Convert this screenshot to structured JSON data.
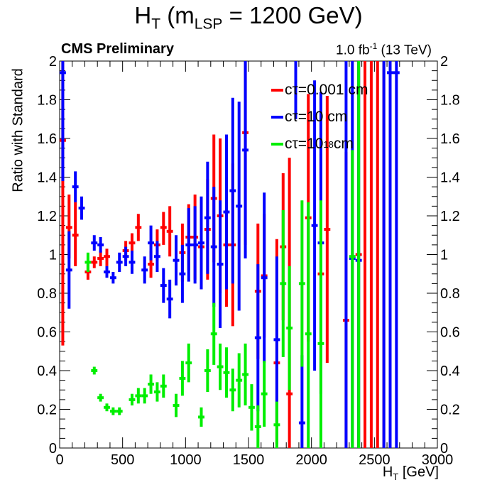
{
  "header": {
    "title_main": "H",
    "title_sub": "T",
    "title_mid": " (m",
    "title_sub2": "LSP",
    "title_end": " = 1200 GeV)",
    "cms_label": "CMS Preliminary",
    "lumi_value": "1.0 fb",
    "lumi_sup": "-1",
    "lumi_energy": " (13 TeV)",
    "xlabel_main": "H",
    "xlabel_sub": "T",
    "xlabel_unit": " [GeV]",
    "ylabel": "Ratio with Standard"
  },
  "legend": [
    {
      "prefix": "cτ=",
      "value": "0.001 cm",
      "sup": "",
      "suffix": "",
      "color": "#ff0000"
    },
    {
      "prefix": "cτ=",
      "value": "10 cm",
      "sup": "",
      "suffix": "",
      "color": "#0000ff"
    },
    {
      "prefix": "cτ=",
      "value": "10",
      "sup": "18",
      "suffix": " cm",
      "color": "#00ee00"
    }
  ],
  "chart_data": {
    "type": "scatter",
    "title": "H_T (m_LSP = 1200 GeV)",
    "xlabel": "H_T [GeV]",
    "ylabel": "Ratio with Standard",
    "xlim": [
      0,
      3000
    ],
    "ylim": [
      0,
      2
    ],
    "x_ticks": [
      "0",
      "500",
      "1000",
      "1500",
      "2000",
      "2500",
      "3000"
    ],
    "y_ticks": [
      "0",
      "0.2",
      "0.4",
      "0.6",
      "0.8",
      "1",
      "1.2",
      "1.4",
      "1.6",
      "1.8",
      "2"
    ],
    "bin_half_width": 25,
    "grid": false,
    "legend_position": "top-right",
    "series": [
      {
        "name": "cτ=0.001 cm",
        "color": "#ff0000",
        "x": [
          25,
          75,
          125,
          175,
          225,
          275,
          325,
          375,
          425,
          475,
          525,
          575,
          625,
          675,
          725,
          775,
          825,
          875,
          925,
          975,
          1025,
          1075,
          1125,
          1175,
          1225,
          1275,
          1325,
          1375,
          1425,
          1475,
          1525,
          1575,
          1625,
          1675,
          1725,
          1775,
          1825,
          1875,
          1925,
          1975,
          2025,
          2075,
          2125,
          2175,
          2225,
          2275,
          2325,
          2375,
          2425,
          2475,
          2525,
          2575,
          2625,
          2675
        ],
        "y": [
          1.59,
          1.14,
          1.1,
          null,
          0.91,
          0.96,
          0.98,
          0.99,
          null,
          null,
          1.02,
          1.06,
          1.14,
          null,
          0.95,
          1.05,
          1.14,
          1.12,
          null,
          1.01,
          1.09,
          1.09,
          1.04,
          1.13,
          1.29,
          1.2,
          1.05,
          1.05,
          null,
          1.63,
          null,
          0.81,
          0.89,
          null,
          0.44,
          1.04,
          0.28,
          2.1,
          null,
          1.19,
          null,
          0.9,
          1.13,
          null,
          null,
          0.66,
          null,
          1.0,
          2.1,
          2.1,
          2.1,
          2.1,
          null,
          null
        ],
        "y_low": [
          0.53,
          0.98,
          0.94,
          null,
          0.87,
          0.93,
          0.94,
          0.94,
          null,
          null,
          0.97,
          1.01,
          1.07,
          null,
          0.88,
          0.97,
          1.05,
          0.99,
          null,
          0.86,
          0.92,
          0.87,
          0.82,
          0.87,
          0.96,
          0.8,
          0.73,
          0.63,
          null,
          1.05,
          null,
          0.46,
          0.57,
          null,
          0.02,
          0.66,
          0.0,
          1.7,
          null,
          0.55,
          null,
          0.28,
          0.44,
          null,
          null,
          0.0,
          null,
          0.0,
          0.0,
          0.0,
          0.0,
          0.0,
          null,
          null
        ],
        "y_high": [
          2.2,
          1.31,
          1.27,
          null,
          0.95,
          0.99,
          1.02,
          1.03,
          null,
          null,
          1.07,
          1.11,
          1.21,
          null,
          1.02,
          1.13,
          1.22,
          1.25,
          null,
          1.16,
          1.26,
          1.31,
          1.26,
          1.39,
          1.62,
          1.6,
          1.4,
          1.47,
          null,
          2.2,
          null,
          1.16,
          1.21,
          null,
          1.08,
          1.42,
          1.5,
          2.2,
          null,
          1.83,
          null,
          1.52,
          1.82,
          null,
          null,
          1.53,
          null,
          2.2,
          2.2,
          2.2,
          2.2,
          2.2,
          null,
          null
        ]
      },
      {
        "name": "cτ=10 cm",
        "color": "#0000ff",
        "x": [
          25,
          75,
          125,
          175,
          225,
          275,
          325,
          375,
          425,
          475,
          525,
          575,
          625,
          675,
          725,
          775,
          825,
          875,
          925,
          975,
          1025,
          1075,
          1125,
          1175,
          1225,
          1275,
          1325,
          1375,
          1425,
          1475,
          1525,
          1575,
          1625,
          1675,
          1725,
          1775,
          1825,
          1875,
          1925,
          1975,
          2025,
          2075,
          2125,
          2175,
          2225,
          2275,
          2325,
          2375,
          2425,
          2475,
          2525,
          2575,
          2625,
          2675
        ],
        "y": [
          1.94,
          0.92,
          1.35,
          1.24,
          null,
          1.06,
          1.05,
          0.91,
          0.88,
          0.96,
          0.99,
          0.96,
          null,
          0.92,
          1.06,
          0.99,
          0.84,
          0.77,
          0.97,
          0.9,
          1.05,
          1.05,
          1.06,
          1.19,
          1.04,
          0.95,
          1.22,
          1.33,
          1.25,
          1.54,
          null,
          0.57,
          0.88,
          null,
          0.56,
          null,
          null,
          2.1,
          0.13,
          null,
          1.15,
          1.06,
          null,
          null,
          null,
          2.1,
          0.98,
          0.97,
          null,
          null,
          null,
          2.1,
          1.94,
          1.94
        ],
        "y_low": [
          1.38,
          0.72,
          1.27,
          1.18,
          null,
          1.02,
          1.01,
          0.88,
          0.85,
          0.91,
          0.94,
          0.9,
          null,
          0.85,
          0.97,
          0.91,
          0.75,
          0.67,
          0.84,
          0.75,
          0.86,
          0.85,
          0.82,
          0.9,
          0.73,
          0.62,
          0.82,
          0.85,
          0.71,
          0.98,
          null,
          0.19,
          0.44,
          null,
          0.13,
          null,
          null,
          1.7,
          0.0,
          null,
          0.4,
          0.28,
          null,
          null,
          null,
          0.0,
          0.0,
          0.0,
          null,
          null,
          null,
          0.0,
          0.0,
          0.0
        ],
        "y_high": [
          2.2,
          1.12,
          1.43,
          1.3,
          null,
          1.1,
          1.09,
          0.94,
          0.91,
          1.01,
          1.04,
          1.02,
          null,
          0.99,
          1.15,
          1.07,
          0.93,
          0.87,
          1.1,
          1.05,
          1.24,
          1.25,
          1.3,
          1.48,
          1.35,
          1.28,
          1.62,
          1.81,
          1.79,
          2.2,
          null,
          0.95,
          1.32,
          null,
          0.99,
          null,
          null,
          2.2,
          0.48,
          null,
          1.9,
          1.84,
          null,
          null,
          null,
          2.2,
          2.2,
          2.2,
          null,
          null,
          null,
          2.2,
          2.2,
          2.2
        ]
      },
      {
        "name": "cτ=10^18 cm",
        "color": "#00ee00",
        "x": [
          225,
          275,
          325,
          375,
          425,
          475,
          525,
          575,
          625,
          675,
          725,
          775,
          825,
          875,
          925,
          975,
          1025,
          1075,
          1125,
          1175,
          1225,
          1275,
          1325,
          1375,
          1425,
          1475,
          1525,
          1575,
          1625,
          1675,
          1725,
          1775,
          1825,
          1875,
          1925,
          1975,
          2025,
          2075,
          2125,
          2175,
          2225,
          2275,
          2325,
          2375
        ],
        "y": [
          0.96,
          0.4,
          0.26,
          0.21,
          0.19,
          0.19,
          null,
          0.25,
          0.27,
          0.27,
          0.33,
          0.29,
          0.32,
          null,
          0.22,
          0.36,
          0.44,
          null,
          0.16,
          0.4,
          0.59,
          0.42,
          0.39,
          0.3,
          0.35,
          0.38,
          0.21,
          0.11,
          0.28,
          null,
          0.12,
          0.85,
          0.62,
          null,
          0.85,
          0.59,
          null,
          0.54,
          null,
          null,
          null,
          null,
          0.99,
          2.1
        ],
        "y_low": [
          0.91,
          0.38,
          0.24,
          0.19,
          0.17,
          0.17,
          null,
          0.22,
          0.23,
          0.23,
          0.28,
          0.24,
          0.26,
          null,
          0.16,
          0.27,
          0.34,
          null,
          0.11,
          0.29,
          0.43,
          0.3,
          0.26,
          0.19,
          0.21,
          0.22,
          0.09,
          0.0,
          0.11,
          null,
          0.0,
          0.47,
          0.3,
          null,
          0.42,
          0.0,
          null,
          0.0,
          null,
          null,
          null,
          null,
          0.0,
          0.0
        ],
        "y_high": [
          1.01,
          0.42,
          0.28,
          0.23,
          0.21,
          0.21,
          null,
          0.28,
          0.31,
          0.31,
          0.38,
          0.34,
          0.38,
          null,
          0.28,
          0.45,
          0.54,
          null,
          0.21,
          0.51,
          0.75,
          0.54,
          0.52,
          0.41,
          0.49,
          0.54,
          0.33,
          0.22,
          0.45,
          null,
          0.24,
          1.23,
          0.94,
          null,
          1.28,
          1.27,
          null,
          1.28,
          null,
          null,
          null,
          null,
          1.54,
          2.2
        ]
      }
    ]
  }
}
